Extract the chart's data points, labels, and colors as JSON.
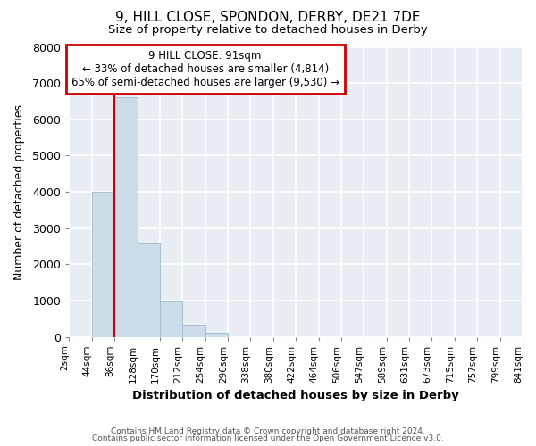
{
  "title": "9, HILL CLOSE, SPONDON, DERBY, DE21 7DE",
  "subtitle": "Size of property relative to detached houses in Derby",
  "xlabel": "Distribution of detached houses by size in Derby",
  "ylabel": "Number of detached properties",
  "bar_color": "#ccdce8",
  "bar_edge_color": "#a8c0d0",
  "bin_labels": [
    "2sqm",
    "44sqm",
    "86sqm",
    "128sqm",
    "170sqm",
    "212sqm",
    "254sqm",
    "296sqm",
    "338sqm",
    "380sqm",
    "422sqm",
    "464sqm",
    "506sqm",
    "547sqm",
    "589sqm",
    "631sqm",
    "673sqm",
    "715sqm",
    "757sqm",
    "799sqm",
    "841sqm"
  ],
  "bar_values": [
    0,
    4000,
    6600,
    2600,
    970,
    330,
    120,
    0,
    0,
    0,
    0,
    0,
    0,
    0,
    0,
    0,
    0,
    0,
    0,
    0
  ],
  "ylim": [
    0,
    8000
  ],
  "yticks": [
    0,
    1000,
    2000,
    3000,
    4000,
    5000,
    6000,
    7000,
    8000
  ],
  "annotation_title": "9 HILL CLOSE: 91sqm",
  "annotation_line1": "← 33% of detached houses are smaller (4,814)",
  "annotation_line2": "65% of semi-detached houses are larger (9,530) →",
  "annotation_box_color": "#ffffff",
  "annotation_box_edge": "#cc0000",
  "red_line_color": "#cc0000",
  "footer1": "Contains HM Land Registry data © Crown copyright and database right 2024.",
  "footer2": "Contains public sector information licensed under the Open Government Licence v3.0.",
  "fig_background": "#ffffff",
  "plot_background": "#e8eef4",
  "grid_color": "#ffffff"
}
